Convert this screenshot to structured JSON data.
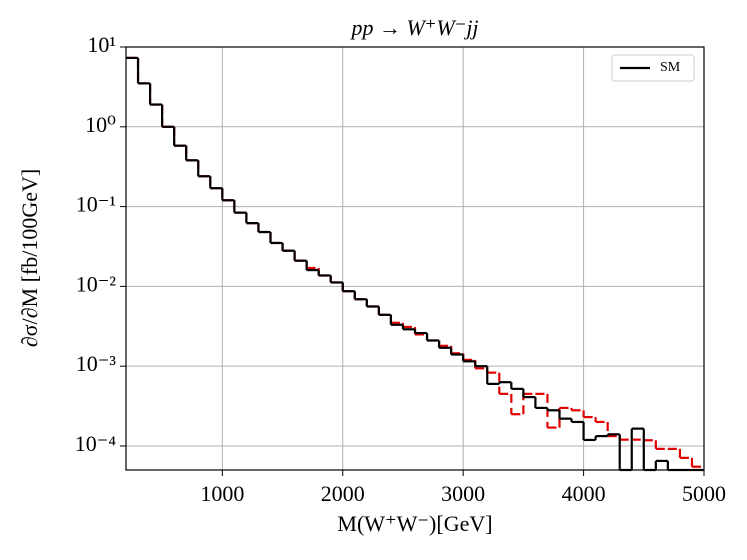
{
  "chart_data": {
    "type": "histogram",
    "title": "pp → W⁺W⁻jj",
    "xlabel": "M(W⁺W⁻)[GeV]",
    "ylabel": "∂σ/∂M [fb/100GeV]",
    "bins": [
      200,
      300,
      400,
      500,
      600,
      700,
      800,
      900,
      1000,
      1100,
      1200,
      1300,
      1400,
      1500,
      1600,
      1700,
      1800,
      1900,
      2000,
      2100,
      2200,
      2300,
      2400,
      2500,
      2600,
      2700,
      2800,
      2900,
      3000,
      3100,
      3200,
      3300,
      3400,
      3500,
      3600,
      3700,
      3800,
      3900,
      4000,
      4100,
      4200,
      4300,
      4400,
      4500,
      4600,
      4700,
      4800,
      4900,
      5000
    ],
    "series": [
      {
        "color": "#e00000",
        "dashed": true,
        "values": [
          7.3,
          3.5,
          1.9,
          1.0,
          0.58,
          0.38,
          0.24,
          0.17,
          0.12,
          0.084,
          0.062,
          0.048,
          0.035,
          0.028,
          0.021,
          0.017,
          0.0137,
          0.0112,
          0.0087,
          0.0069,
          0.0056,
          0.0044,
          0.0035,
          0.0031,
          0.0025,
          0.0021,
          0.0018,
          0.00145,
          0.0012,
          0.00094,
          0.00083,
          0.00045,
          0.00025,
          0.00045,
          0.00045,
          0.00017,
          0.0003,
          0.00028,
          0.00023,
          0.0002,
          0.000133,
          0.00012,
          0.00012,
          0.000118,
          9.2e-05,
          9.2e-05,
          7.1e-05,
          5.5e-05
        ]
      },
      {
        "name": "SM",
        "color": "#000000",
        "dashed": false,
        "values": [
          7.3,
          3.5,
          1.9,
          1.0,
          0.58,
          0.38,
          0.24,
          0.17,
          0.12,
          0.084,
          0.062,
          0.048,
          0.035,
          0.028,
          0.021,
          0.016,
          0.0137,
          0.0112,
          0.0087,
          0.0069,
          0.0056,
          0.0044,
          0.0033,
          0.0029,
          0.0026,
          0.0021,
          0.0017,
          0.0014,
          0.00115,
          0.001,
          0.0006,
          0.00063,
          0.00052,
          0.00041,
          0.0003,
          0.00028,
          0.00022,
          0.0002,
          0.000119,
          0.000133,
          0.00014,
          0,
          0.000165,
          0,
          6.5e-05,
          0,
          0,
          0
        ]
      }
    ],
    "xlim": [
      200,
      5000
    ],
    "ylim": [
      5e-05,
      10
    ],
    "log_y": true,
    "grid": true,
    "legend": "upper right",
    "xticks": [
      1000,
      2000,
      3000,
      4000,
      5000
    ],
    "yticks": [
      {
        "value": 10,
        "label": "10¹"
      },
      {
        "value": 1,
        "label": "10⁰"
      },
      {
        "value": 0.1,
        "label": "10⁻¹"
      },
      {
        "value": 0.01,
        "label": "10⁻²"
      },
      {
        "value": 0.001,
        "label": "10⁻³"
      },
      {
        "value": 0.0001,
        "label": "10⁻⁴"
      }
    ]
  }
}
